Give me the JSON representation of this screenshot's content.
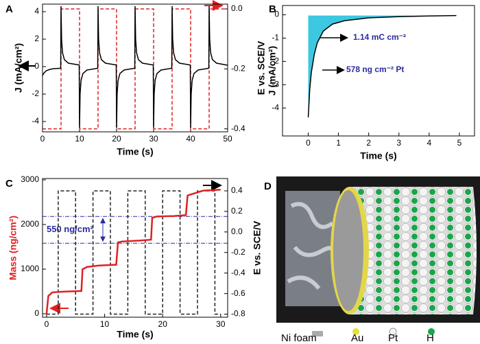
{
  "chart_data": [
    {
      "type": "line",
      "label": "A",
      "xlabel": "Time (s)",
      "ylabel": "J (mA/cm²)",
      "y2label": "E vs. SCE/V",
      "xlim": [
        0,
        50
      ],
      "xticks": [
        0,
        10,
        20,
        30,
        40,
        50
      ],
      "ylim": [
        -4.75,
        4.55
      ],
      "yticks": [
        -4,
        -2,
        0,
        2,
        4
      ],
      "y2lim": [
        -0.41,
        0.016
      ],
      "y2ticks": [
        {
          "value": 0,
          "label": "0.0"
        },
        -0.2,
        -0.4
      ],
      "series": [
        {
          "color": "#e02020",
          "dashed": true,
          "axis": "y2",
          "x": [
            0,
            5,
            5,
            10,
            10,
            15,
            15,
            20,
            20,
            25,
            25,
            30,
            30,
            35,
            35,
            40,
            40,
            45,
            45,
            50
          ],
          "values": [
            -0.4,
            -0.4,
            0,
            0,
            -0.4,
            -0.4,
            0,
            0,
            -0.4,
            -0.4,
            0,
            0,
            -0.4,
            -0.4,
            0,
            0,
            -0.4,
            -0.4,
            0,
            0
          ]
        },
        {
          "color": "#000000",
          "x": [
            0,
            0.3,
            1,
            2,
            3,
            4.9,
            5,
            5.15,
            5.4,
            5.9,
            7,
            9.9,
            10,
            10.15,
            10.4,
            10.9,
            12,
            14.9,
            15,
            15.15,
            15.4,
            15.9,
            17,
            19.9,
            20,
            20.15,
            20.4,
            20.9,
            22,
            24.9,
            25,
            25.15,
            25.4,
            25.9,
            27,
            29.9,
            30,
            30.15,
            30.4,
            30.9,
            32,
            34.9,
            35,
            35.15,
            35.4,
            35.9,
            37,
            39.9,
            40,
            40.15,
            40.4,
            40.9,
            42,
            44.9,
            45,
            45.15,
            45.4,
            45.9,
            47,
            50
          ],
          "values": [
            -0.65,
            -0.5,
            -0.3,
            -0.2,
            -0.15,
            -0.12,
            4.4,
            2,
            1,
            0.5,
            0.25,
            0.12,
            -4.45,
            -2,
            -1,
            -0.5,
            -0.25,
            -0.12,
            4.4,
            2,
            1,
            0.5,
            0.25,
            0.12,
            -4.45,
            -2,
            -1,
            -0.5,
            -0.25,
            -0.12,
            4.4,
            2,
            1,
            0.5,
            0.25,
            0.12,
            -4.45,
            -2,
            -1,
            -0.5,
            -0.25,
            -0.12,
            4.4,
            2,
            1,
            0.5,
            0.25,
            0.12,
            -4.45,
            -2,
            -1,
            -0.5,
            -0.25,
            -0.12,
            4.4,
            2,
            1,
            0.5,
            0.25,
            0.1
          ]
        }
      ]
    },
    {
      "type": "line",
      "label": "B",
      "xlabel": "Time (s)",
      "ylabel": "J (mA/cm²)",
      "xlim": [
        -0.85,
        5.5
      ],
      "xticks": [
        0,
        1,
        2,
        3,
        4,
        5
      ],
      "ylim": [
        -5.2,
        0.4
      ],
      "yticks": [
        -4,
        -3,
        -2,
        -1,
        0
      ],
      "annotations": [
        "1.14 mC cm⁻²",
        "578 ng cm⁻² Pt"
      ],
      "series": [
        {
          "color": "#000000",
          "fill": "#3cc8e0",
          "x": [
            0,
            0.05,
            0.1,
            0.2,
            0.3,
            0.5,
            0.8,
            1.2,
            2,
            3,
            4,
            4.9
          ],
          "values": [
            -4.4,
            -3.2,
            -2.5,
            -1.7,
            -1.2,
            -0.7,
            -0.4,
            -0.25,
            -0.13,
            -0.08,
            -0.05,
            -0.03
          ]
        }
      ]
    },
    {
      "type": "line",
      "label": "C",
      "xlabel": "Time (s)",
      "ylabel": "Mass (ng/cm²)",
      "y2label": "E vs. SCE/V",
      "ylabel_color": "#e02020",
      "xlim": [
        -0.7,
        31.2
      ],
      "xticks": [
        0,
        10,
        20,
        30
      ],
      "ylim": [
        -77,
        3030
      ],
      "yticks": [
        0,
        1000,
        2000,
        3000
      ],
      "y2lim": [
        -0.83,
        0.52
      ],
      "y2ticks": [
        0.4,
        0.2,
        {
          "value": 0,
          "label": "0.0"
        },
        -0.2,
        -0.4,
        -0.6,
        -0.8
      ],
      "reference_lines": [
        2180,
        1580
      ],
      "annotations": [
        "550 ng/cm²"
      ],
      "series": [
        {
          "color": "#222222",
          "dashed": true,
          "axis": "y2",
          "x": [
            0,
            2,
            2,
            5,
            5,
            8,
            8,
            11,
            11,
            14,
            14,
            17,
            17,
            20,
            20,
            23,
            23,
            26,
            26,
            29,
            29,
            30
          ],
          "values": [
            -0.8,
            -0.8,
            0.4,
            0.4,
            -0.8,
            -0.8,
            0.4,
            0.4,
            -0.8,
            -0.8,
            0.4,
            0.4,
            -0.8,
            -0.8,
            0.4,
            0.4,
            -0.8,
            -0.8,
            0.4,
            0.4,
            -0.8,
            -0.8
          ]
        },
        {
          "color": "#e02020",
          "width": 2.5,
          "x": [
            0,
            0.3,
            1,
            3,
            6,
            6.2,
            7,
            9,
            12,
            12.3,
            13,
            16,
            18,
            18.2,
            19,
            22,
            24,
            24.3,
            26,
            27,
            30
          ],
          "values": [
            0,
            400,
            480,
            495,
            510,
            1000,
            1050,
            1080,
            1100,
            1600,
            1620,
            1640,
            1660,
            2150,
            2180,
            2190,
            2210,
            2650,
            2720,
            2760,
            2780
          ]
        }
      ]
    }
  ],
  "figure_d": {
    "label": "D",
    "legend": [
      "Ni foam",
      "Au",
      "Pt",
      "H"
    ]
  }
}
